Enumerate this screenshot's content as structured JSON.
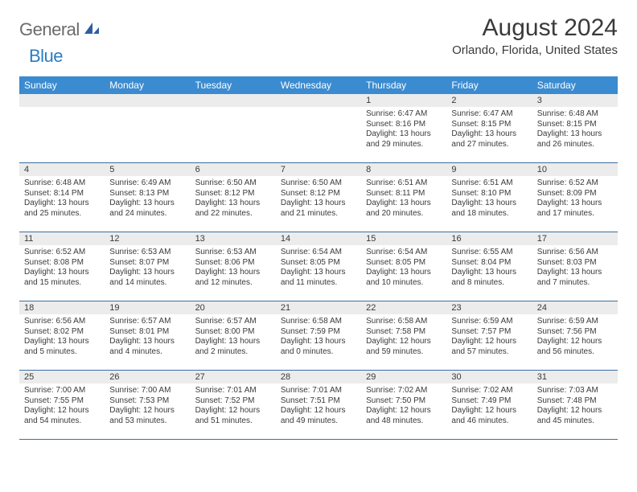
{
  "brand": {
    "general": "General",
    "blue": "Blue"
  },
  "title": "August 2024",
  "location": "Orlando, Florida, United States",
  "colors": {
    "header_bg": "#3b8bd0",
    "header_text": "#ffffff",
    "daynum_bg": "#ececec",
    "row_border": "#3a6fa3",
    "text": "#3a3a3a",
    "brand_gray": "#6b6b6b",
    "brand_blue": "#2a7cc4"
  },
  "day_headers": [
    "Sunday",
    "Monday",
    "Tuesday",
    "Wednesday",
    "Thursday",
    "Friday",
    "Saturday"
  ],
  "weeks": [
    [
      {
        "blank": true
      },
      {
        "blank": true
      },
      {
        "blank": true
      },
      {
        "blank": true
      },
      {
        "day": "1",
        "sunrise": "Sunrise: 6:47 AM",
        "sunset": "Sunset: 8:16 PM",
        "daylight": "Daylight: 13 hours and 29 minutes."
      },
      {
        "day": "2",
        "sunrise": "Sunrise: 6:47 AM",
        "sunset": "Sunset: 8:15 PM",
        "daylight": "Daylight: 13 hours and 27 minutes."
      },
      {
        "day": "3",
        "sunrise": "Sunrise: 6:48 AM",
        "sunset": "Sunset: 8:15 PM",
        "daylight": "Daylight: 13 hours and 26 minutes."
      }
    ],
    [
      {
        "day": "4",
        "sunrise": "Sunrise: 6:48 AM",
        "sunset": "Sunset: 8:14 PM",
        "daylight": "Daylight: 13 hours and 25 minutes."
      },
      {
        "day": "5",
        "sunrise": "Sunrise: 6:49 AM",
        "sunset": "Sunset: 8:13 PM",
        "daylight": "Daylight: 13 hours and 24 minutes."
      },
      {
        "day": "6",
        "sunrise": "Sunrise: 6:50 AM",
        "sunset": "Sunset: 8:12 PM",
        "daylight": "Daylight: 13 hours and 22 minutes."
      },
      {
        "day": "7",
        "sunrise": "Sunrise: 6:50 AM",
        "sunset": "Sunset: 8:12 PM",
        "daylight": "Daylight: 13 hours and 21 minutes."
      },
      {
        "day": "8",
        "sunrise": "Sunrise: 6:51 AM",
        "sunset": "Sunset: 8:11 PM",
        "daylight": "Daylight: 13 hours and 20 minutes."
      },
      {
        "day": "9",
        "sunrise": "Sunrise: 6:51 AM",
        "sunset": "Sunset: 8:10 PM",
        "daylight": "Daylight: 13 hours and 18 minutes."
      },
      {
        "day": "10",
        "sunrise": "Sunrise: 6:52 AM",
        "sunset": "Sunset: 8:09 PM",
        "daylight": "Daylight: 13 hours and 17 minutes."
      }
    ],
    [
      {
        "day": "11",
        "sunrise": "Sunrise: 6:52 AM",
        "sunset": "Sunset: 8:08 PM",
        "daylight": "Daylight: 13 hours and 15 minutes."
      },
      {
        "day": "12",
        "sunrise": "Sunrise: 6:53 AM",
        "sunset": "Sunset: 8:07 PM",
        "daylight": "Daylight: 13 hours and 14 minutes."
      },
      {
        "day": "13",
        "sunrise": "Sunrise: 6:53 AM",
        "sunset": "Sunset: 8:06 PM",
        "daylight": "Daylight: 13 hours and 12 minutes."
      },
      {
        "day": "14",
        "sunrise": "Sunrise: 6:54 AM",
        "sunset": "Sunset: 8:05 PM",
        "daylight": "Daylight: 13 hours and 11 minutes."
      },
      {
        "day": "15",
        "sunrise": "Sunrise: 6:54 AM",
        "sunset": "Sunset: 8:05 PM",
        "daylight": "Daylight: 13 hours and 10 minutes."
      },
      {
        "day": "16",
        "sunrise": "Sunrise: 6:55 AM",
        "sunset": "Sunset: 8:04 PM",
        "daylight": "Daylight: 13 hours and 8 minutes."
      },
      {
        "day": "17",
        "sunrise": "Sunrise: 6:56 AM",
        "sunset": "Sunset: 8:03 PM",
        "daylight": "Daylight: 13 hours and 7 minutes."
      }
    ],
    [
      {
        "day": "18",
        "sunrise": "Sunrise: 6:56 AM",
        "sunset": "Sunset: 8:02 PM",
        "daylight": "Daylight: 13 hours and 5 minutes."
      },
      {
        "day": "19",
        "sunrise": "Sunrise: 6:57 AM",
        "sunset": "Sunset: 8:01 PM",
        "daylight": "Daylight: 13 hours and 4 minutes."
      },
      {
        "day": "20",
        "sunrise": "Sunrise: 6:57 AM",
        "sunset": "Sunset: 8:00 PM",
        "daylight": "Daylight: 13 hours and 2 minutes."
      },
      {
        "day": "21",
        "sunrise": "Sunrise: 6:58 AM",
        "sunset": "Sunset: 7:59 PM",
        "daylight": "Daylight: 13 hours and 0 minutes."
      },
      {
        "day": "22",
        "sunrise": "Sunrise: 6:58 AM",
        "sunset": "Sunset: 7:58 PM",
        "daylight": "Daylight: 12 hours and 59 minutes."
      },
      {
        "day": "23",
        "sunrise": "Sunrise: 6:59 AM",
        "sunset": "Sunset: 7:57 PM",
        "daylight": "Daylight: 12 hours and 57 minutes."
      },
      {
        "day": "24",
        "sunrise": "Sunrise: 6:59 AM",
        "sunset": "Sunset: 7:56 PM",
        "daylight": "Daylight: 12 hours and 56 minutes."
      }
    ],
    [
      {
        "day": "25",
        "sunrise": "Sunrise: 7:00 AM",
        "sunset": "Sunset: 7:55 PM",
        "daylight": "Daylight: 12 hours and 54 minutes."
      },
      {
        "day": "26",
        "sunrise": "Sunrise: 7:00 AM",
        "sunset": "Sunset: 7:53 PM",
        "daylight": "Daylight: 12 hours and 53 minutes."
      },
      {
        "day": "27",
        "sunrise": "Sunrise: 7:01 AM",
        "sunset": "Sunset: 7:52 PM",
        "daylight": "Daylight: 12 hours and 51 minutes."
      },
      {
        "day": "28",
        "sunrise": "Sunrise: 7:01 AM",
        "sunset": "Sunset: 7:51 PM",
        "daylight": "Daylight: 12 hours and 49 minutes."
      },
      {
        "day": "29",
        "sunrise": "Sunrise: 7:02 AM",
        "sunset": "Sunset: 7:50 PM",
        "daylight": "Daylight: 12 hours and 48 minutes."
      },
      {
        "day": "30",
        "sunrise": "Sunrise: 7:02 AM",
        "sunset": "Sunset: 7:49 PM",
        "daylight": "Daylight: 12 hours and 46 minutes."
      },
      {
        "day": "31",
        "sunrise": "Sunrise: 7:03 AM",
        "sunset": "Sunset: 7:48 PM",
        "daylight": "Daylight: 12 hours and 45 minutes."
      }
    ]
  ]
}
